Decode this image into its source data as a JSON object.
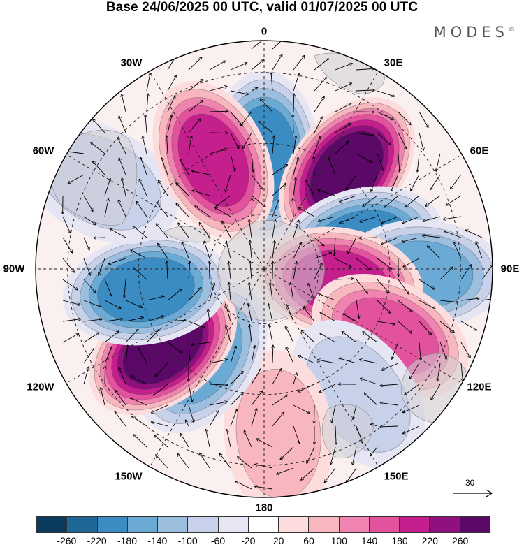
{
  "title": "Base 24/06/2025 00 UTC, valid 01/07/2025 00 UTC",
  "logo": "MODES",
  "longitude_labels": [
    "0",
    "30E",
    "60E",
    "90E",
    "120E",
    "150E",
    "180",
    "150W",
    "120W",
    "90W",
    "60W",
    "30W"
  ],
  "reference_vector": {
    "label": "30",
    "icon": "arrow-right-icon"
  },
  "colorbar": {
    "colors": [
      "#0a3a5c",
      "#1e6796",
      "#3a8cc2",
      "#6aaad4",
      "#9cbfe0",
      "#c7d1ea",
      "#e6e5f3",
      "#ffffff",
      "#fcdcdc",
      "#f8b7bf",
      "#f084b0",
      "#e2529d",
      "#c41f8c",
      "#90107e",
      "#5a0a66"
    ],
    "ticks": [
      "-260",
      "-220",
      "-180",
      "-140",
      "-100",
      "-60",
      "-20",
      "20",
      "60",
      "100",
      "140",
      "180",
      "220",
      "260"
    ]
  },
  "anomaly_centers": [
    {
      "label": "negative",
      "lon": 0,
      "lat": -50,
      "value": -180
    },
    {
      "label": "positive",
      "lon": 40,
      "lat": -45,
      "value": 240
    },
    {
      "label": "negative",
      "lon": 75,
      "lat": -55,
      "value": -160
    },
    {
      "label": "negative",
      "lon": 92,
      "lat": -35,
      "value": -140
    },
    {
      "label": "positive",
      "lon": 100,
      "lat": -63,
      "value": 160
    },
    {
      "label": "positive",
      "lon": 118,
      "lat": -40,
      "value": 140
    },
    {
      "label": "negative",
      "lon": 143,
      "lat": -35,
      "value": -60
    },
    {
      "label": "positive",
      "lon": 175,
      "lat": -32,
      "value": 60
    },
    {
      "label": "negative",
      "lon": -145,
      "lat": -52,
      "value": -140
    },
    {
      "label": "positive",
      "lon": -128,
      "lat": -45,
      "value": 240
    },
    {
      "label": "negative",
      "lon": -100,
      "lat": -48,
      "value": -180
    },
    {
      "label": "negative",
      "lon": -62,
      "lat": -25,
      "value": -60
    },
    {
      "label": "positive",
      "lon": -25,
      "lat": -48,
      "value": 180
    }
  ]
}
